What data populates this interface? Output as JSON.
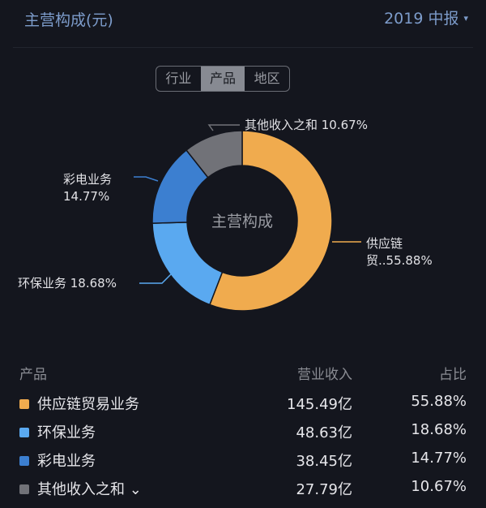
{
  "header": {
    "title": "主营构成(元)",
    "period": "2019 中报",
    "period_caret": "▾"
  },
  "tabs": [
    {
      "label": "行业",
      "active": false
    },
    {
      "label": "产品",
      "active": true
    },
    {
      "label": "地区",
      "active": false
    }
  ],
  "chart_data": {
    "type": "pie",
    "donut": true,
    "center_label": "主营构成",
    "slices": [
      {
        "name": "供应链贸易业务",
        "label": "供应链\n贸..55.88%",
        "value": 55.88,
        "color": "#f0ab4e"
      },
      {
        "name": "环保业务",
        "label": "环保业务 18.68%",
        "value": 18.68,
        "color": "#5aa9f0"
      },
      {
        "name": "彩电业务",
        "label": "彩电业务\n14.77%",
        "value": 14.77,
        "color": "#3c7fd0"
      },
      {
        "name": "其他收入之和",
        "label": "其他收入之和 10.67%",
        "value": 10.67,
        "color": "#717278"
      }
    ]
  },
  "table": {
    "headers": [
      "产品",
      "营业收入",
      "占比"
    ],
    "rows": [
      {
        "name": "供应链贸易业务",
        "revenue": "145.49亿",
        "share": "55.88%",
        "color": "#f0ab4e"
      },
      {
        "name": "环保业务",
        "revenue": "48.63亿",
        "share": "18.68%",
        "color": "#5aa9f0"
      },
      {
        "name": "彩电业务",
        "revenue": "38.45亿",
        "share": "14.77%",
        "color": "#3c7fd0"
      },
      {
        "name": "其他收入之和 ⌄",
        "revenue": "27.79亿",
        "share": "10.67%",
        "color": "#717278"
      }
    ]
  }
}
